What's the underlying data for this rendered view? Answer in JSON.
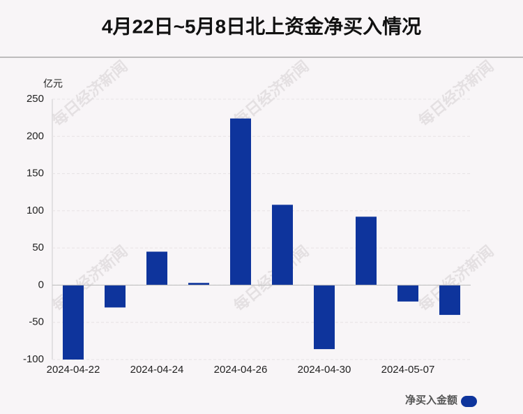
{
  "chart_data": {
    "type": "bar",
    "title": "4月22日~5月8日北上资金净买入情况",
    "y_unit": "亿元",
    "watermark": "每日经济新闻",
    "categories": [
      "2024-04-22",
      null,
      "2024-04-24",
      null,
      "2024-04-26",
      null,
      "2024-04-30",
      null,
      "2024-05-07",
      null
    ],
    "series": [
      {
        "name": "净买入金额",
        "color": "#0e349c",
        "values": [
          -100,
          -30,
          45,
          3,
          224,
          108,
          -86,
          92,
          -22,
          -40
        ]
      }
    ],
    "ylim": [
      -100,
      250
    ],
    "yticks": [
      -100,
      -50,
      0,
      50,
      100,
      150,
      200,
      250
    ],
    "grid": true,
    "legend": "bottom-right"
  }
}
